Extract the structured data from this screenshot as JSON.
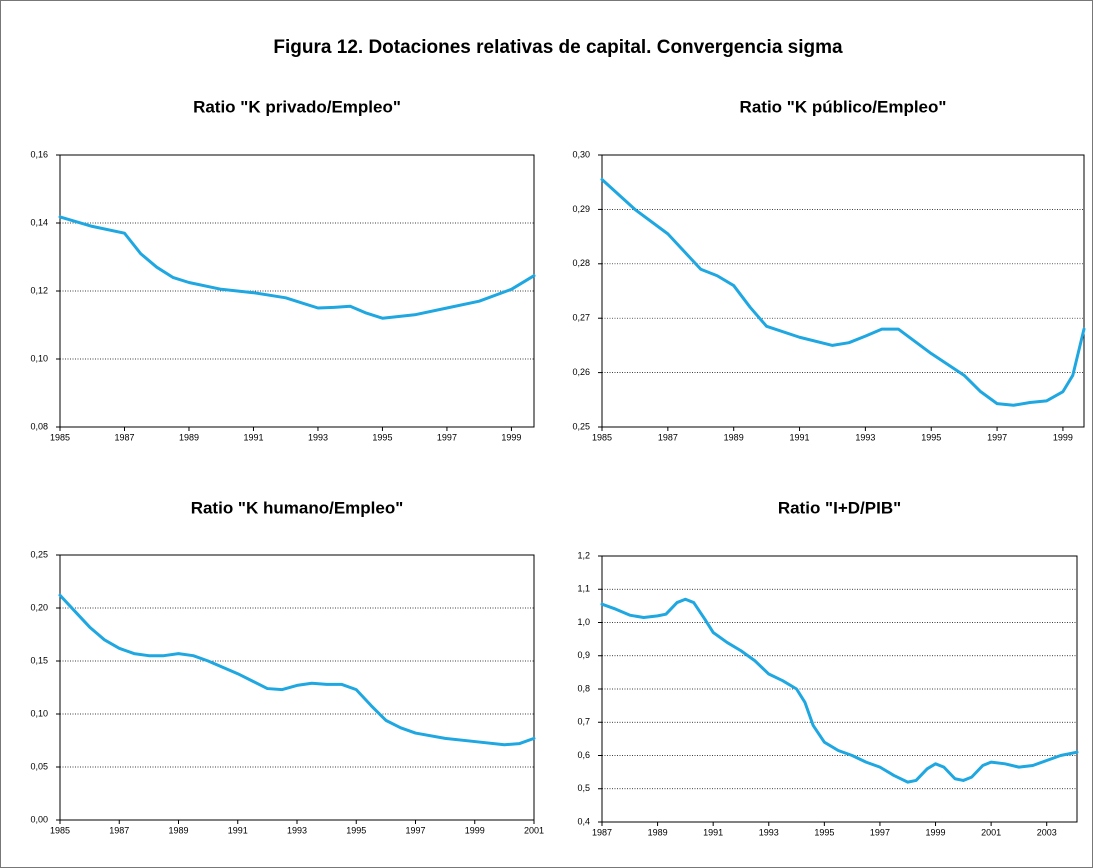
{
  "title": "Figura 12. Dotaciones relativas de capital. Convergencia sigma",
  "chart_data": [
    {
      "type": "line",
      "title": "Ratio \"K privado/Empleo\"",
      "color": "#1ea7e1",
      "grid": true,
      "x": [
        1985,
        1986,
        1987,
        1987.5,
        1988,
        1988.5,
        1989,
        1990,
        1991,
        1992,
        1992.5,
        1993,
        1993.5,
        1994,
        1994.5,
        1995,
        1996,
        1997,
        1998,
        1999,
        1999.7
      ],
      "values": [
        0.1418,
        0.139,
        0.137,
        0.131,
        0.127,
        0.124,
        0.1225,
        0.1205,
        0.1195,
        0.118,
        0.1165,
        0.115,
        0.1152,
        0.1155,
        0.1135,
        0.112,
        0.113,
        0.115,
        0.117,
        0.1205,
        0.1245
      ],
      "xlim": [
        1985,
        1999.7
      ],
      "xticks": [
        1985,
        1987,
        1989,
        1991,
        1993,
        1995,
        1997,
        1999
      ],
      "ylim": [
        0.08,
        0.16
      ],
      "yticks": [
        {
          "value": 0.08,
          "label": "0,08"
        },
        {
          "value": 0.1,
          "label": "0,10"
        },
        {
          "value": 0.12,
          "label": "0,12"
        },
        {
          "value": 0.14,
          "label": "0,14"
        },
        {
          "value": 0.16,
          "label": "0,16"
        }
      ]
    },
    {
      "type": "line",
      "title": "Ratio \"K público/Empleo\"",
      "color": "#1ea7e1",
      "grid": true,
      "x": [
        1985,
        1986,
        1987,
        1988,
        1988.5,
        1989,
        1989.5,
        1990,
        1991,
        1992,
        1992.5,
        1993,
        1993.5,
        1994,
        1995,
        1996,
        1996.5,
        1997,
        1997.5,
        1998,
        1998.5,
        1999,
        1999.3,
        1999.64
      ],
      "values": [
        0.2955,
        0.29,
        0.2855,
        0.279,
        0.2778,
        0.276,
        0.272,
        0.2685,
        0.2665,
        0.265,
        0.2655,
        0.2667,
        0.268,
        0.268,
        0.2635,
        0.2595,
        0.2565,
        0.2543,
        0.254,
        0.2545,
        0.2548,
        0.2565,
        0.2595,
        0.268
      ],
      "xlim": [
        1985,
        1999.64
      ],
      "xticks": [
        1985,
        1987,
        1989,
        1991,
        1993,
        1995,
        1997,
        1999
      ],
      "ylim": [
        0.25,
        0.3
      ],
      "yticks": [
        {
          "value": 0.25,
          "label": "0,25"
        },
        {
          "value": 0.26,
          "label": "0,26"
        },
        {
          "value": 0.27,
          "label": "0,27"
        },
        {
          "value": 0.28,
          "label": "0,28"
        },
        {
          "value": 0.29,
          "label": "0,29"
        },
        {
          "value": 0.3,
          "label": "0,30"
        }
      ]
    },
    {
      "type": "line",
      "title": "Ratio \"K humano/Empleo\"",
      "color": "#1ea7e1",
      "grid": true,
      "x": [
        1985,
        1985.5,
        1986,
        1986.5,
        1987,
        1987.5,
        1988,
        1988.5,
        1989,
        1989.5,
        1990,
        1991,
        1991.5,
        1992,
        1992.5,
        1993,
        1993.5,
        1994,
        1994.5,
        1995,
        1995.5,
        1996,
        1996.5,
        1997,
        1998,
        1999,
        2000,
        2000.5,
        2001
      ],
      "values": [
        0.212,
        0.197,
        0.182,
        0.17,
        0.162,
        0.157,
        0.155,
        0.155,
        0.157,
        0.155,
        0.15,
        0.138,
        0.131,
        0.124,
        0.123,
        0.127,
        0.129,
        0.128,
        0.128,
        0.123,
        0.108,
        0.094,
        0.087,
        0.082,
        0.077,
        0.074,
        0.071,
        0.072,
        0.077
      ],
      "xlim": [
        1985,
        2001
      ],
      "xticks": [
        1985,
        1987,
        1989,
        1991,
        1993,
        1995,
        1997,
        1999,
        2001
      ],
      "ylim": [
        0,
        0.25
      ],
      "yticks": [
        {
          "value": 0,
          "label": "0,00"
        },
        {
          "value": 0.05,
          "label": "0,05"
        },
        {
          "value": 0.1,
          "label": "0,10"
        },
        {
          "value": 0.15,
          "label": "0,15"
        },
        {
          "value": 0.2,
          "label": "0,20"
        },
        {
          "value": 0.25,
          "label": "0,25"
        }
      ]
    },
    {
      "type": "line",
      "title": "Ratio \"I+D/PIB\"",
      "color": "#1ea7e1",
      "grid": true,
      "x": [
        1987,
        1987.5,
        1988,
        1988.5,
        1989,
        1989.3,
        1989.7,
        1990,
        1990.3,
        1990.7,
        1991,
        1991.5,
        1992,
        1992.5,
        1993,
        1993.5,
        1994,
        1994.3,
        1994.6,
        1995,
        1995.5,
        1996,
        1996.5,
        1997,
        1997.5,
        1998,
        1998.3,
        1998.7,
        1999,
        1999.3,
        1999.7,
        2000,
        2000.3,
        2000.7,
        2001,
        2001.5,
        2002,
        2002.5,
        2003,
        2003.5,
        2004.09
      ],
      "values": [
        1.055,
        1.04,
        1.022,
        1.015,
        1.02,
        1.025,
        1.06,
        1.07,
        1.06,
        1.01,
        0.97,
        0.94,
        0.915,
        0.885,
        0.845,
        0.825,
        0.8,
        0.76,
        0.69,
        0.64,
        0.615,
        0.6,
        0.58,
        0.565,
        0.54,
        0.52,
        0.525,
        0.56,
        0.575,
        0.565,
        0.53,
        0.525,
        0.535,
        0.57,
        0.58,
        0.575,
        0.565,
        0.57,
        0.585,
        0.6,
        0.61
      ],
      "xlim": [
        1987,
        2004.09
      ],
      "xticks": [
        1987,
        1989,
        1991,
        1993,
        1995,
        1997,
        1999,
        2001,
        2003
      ],
      "ylim": [
        0.4,
        1.2
      ],
      "yticks": [
        {
          "value": 0.4,
          "label": "0,4"
        },
        {
          "value": 0.5,
          "label": "0,5"
        },
        {
          "value": 0.6,
          "label": "0,6"
        },
        {
          "value": 0.7,
          "label": "0,7"
        },
        {
          "value": 0.8,
          "label": "0,8"
        },
        {
          "value": 0.9,
          "label": "0,9"
        },
        {
          "value": 1.0,
          "label": "1,0"
        },
        {
          "value": 1.1,
          "label": "1,1"
        },
        {
          "value": 1.2,
          "label": "1,2"
        }
      ]
    }
  ]
}
